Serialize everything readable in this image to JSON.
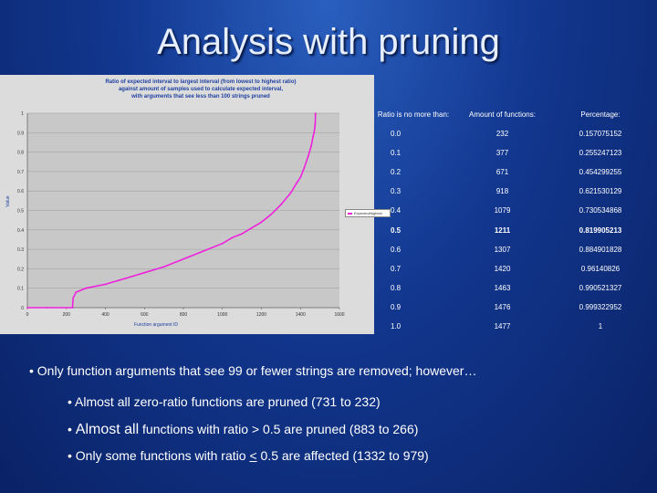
{
  "slide": {
    "title": "Analysis with pruning"
  },
  "chart_data": {
    "type": "line",
    "title_lines": [
      "Ratio of expected interval to largest interval (from lowest to highest ratio)",
      "against amount of samples used to calculate expected interval,",
      "with arguments that see less than 100 strings pruned"
    ],
    "xlabel": "Function argument ID",
    "ylabel": "Value",
    "xlim": [
      0,
      1600
    ],
    "ylim": [
      0,
      1
    ],
    "x_ticks": [
      "0",
      "200",
      "400",
      "600",
      "800",
      "1000",
      "1200",
      "1400",
      "1600"
    ],
    "y_ticks": [
      "0",
      "0.1",
      "0.2",
      "0.3",
      "0.4",
      "0.5",
      "0.6",
      "0.7",
      "0.8",
      "0.9",
      "1"
    ],
    "series": [
      {
        "name": "Expected/highest",
        "color": "#ee22dd",
        "x": [
          0,
          100,
          231,
          235,
          250,
          300,
          400,
          500,
          600,
          700,
          800,
          900,
          1000,
          1050,
          1100,
          1150,
          1200,
          1250,
          1300,
          1350,
          1380,
          1400,
          1420,
          1440,
          1455,
          1465,
          1470,
          1474,
          1476,
          1477,
          1477
        ],
        "y": [
          0,
          0,
          0,
          0.05,
          0.08,
          0.1,
          0.12,
          0.15,
          0.18,
          0.21,
          0.25,
          0.29,
          0.33,
          0.36,
          0.38,
          0.41,
          0.44,
          0.48,
          0.53,
          0.59,
          0.64,
          0.67,
          0.72,
          0.78,
          0.83,
          0.88,
          0.9,
          0.93,
          0.95,
          0.99,
          1.0
        ]
      }
    ]
  },
  "table": {
    "headers": [
      "Ratio is no more than:",
      "Amount of functions:",
      "Percentage:"
    ],
    "rows": [
      {
        "ratio": "0.0",
        "amount": "232",
        "pct": "0.157075152",
        "bold": false
      },
      {
        "ratio": "0.1",
        "amount": "377",
        "pct": "0.255247123",
        "bold": false
      },
      {
        "ratio": "0.2",
        "amount": "671",
        "pct": "0.454299255",
        "bold": false
      },
      {
        "ratio": "0.3",
        "amount": "918",
        "pct": "0.621530129",
        "bold": false
      },
      {
        "ratio": "0.4",
        "amount": "1079",
        "pct": "0.730534868",
        "bold": false
      },
      {
        "ratio": "0.5",
        "amount": "1211",
        "pct": "0.819905213",
        "bold": true
      },
      {
        "ratio": "0.6",
        "amount": "1307",
        "pct": "0.884901828",
        "bold": false
      },
      {
        "ratio": "0.7",
        "amount": "1420",
        "pct": "0.96140826",
        "bold": false
      },
      {
        "ratio": "0.8",
        "amount": "1463",
        "pct": "0.990521327",
        "bold": false
      },
      {
        "ratio": "0.9",
        "amount": "1476",
        "pct": "0.999322952",
        "bold": false
      },
      {
        "ratio": "1.0",
        "amount": "1477",
        "pct": "1",
        "bold": false
      }
    ]
  },
  "bullets": {
    "b1": "• Only function arguments that see 99 or fewer strings are removed; however…",
    "b2": "• Almost all zero-ratio functions are pruned (731 to 232)",
    "b3_pre": "• ",
    "b3_big": "Almost all",
    "b3_post": " functions with ratio > 0.5 are pruned (883 to 266)",
    "b4_pre": "• Only some functions with ratio ",
    "b4_u": "<",
    "b4_post": " 0.5 are affected (1332 to 979)"
  }
}
